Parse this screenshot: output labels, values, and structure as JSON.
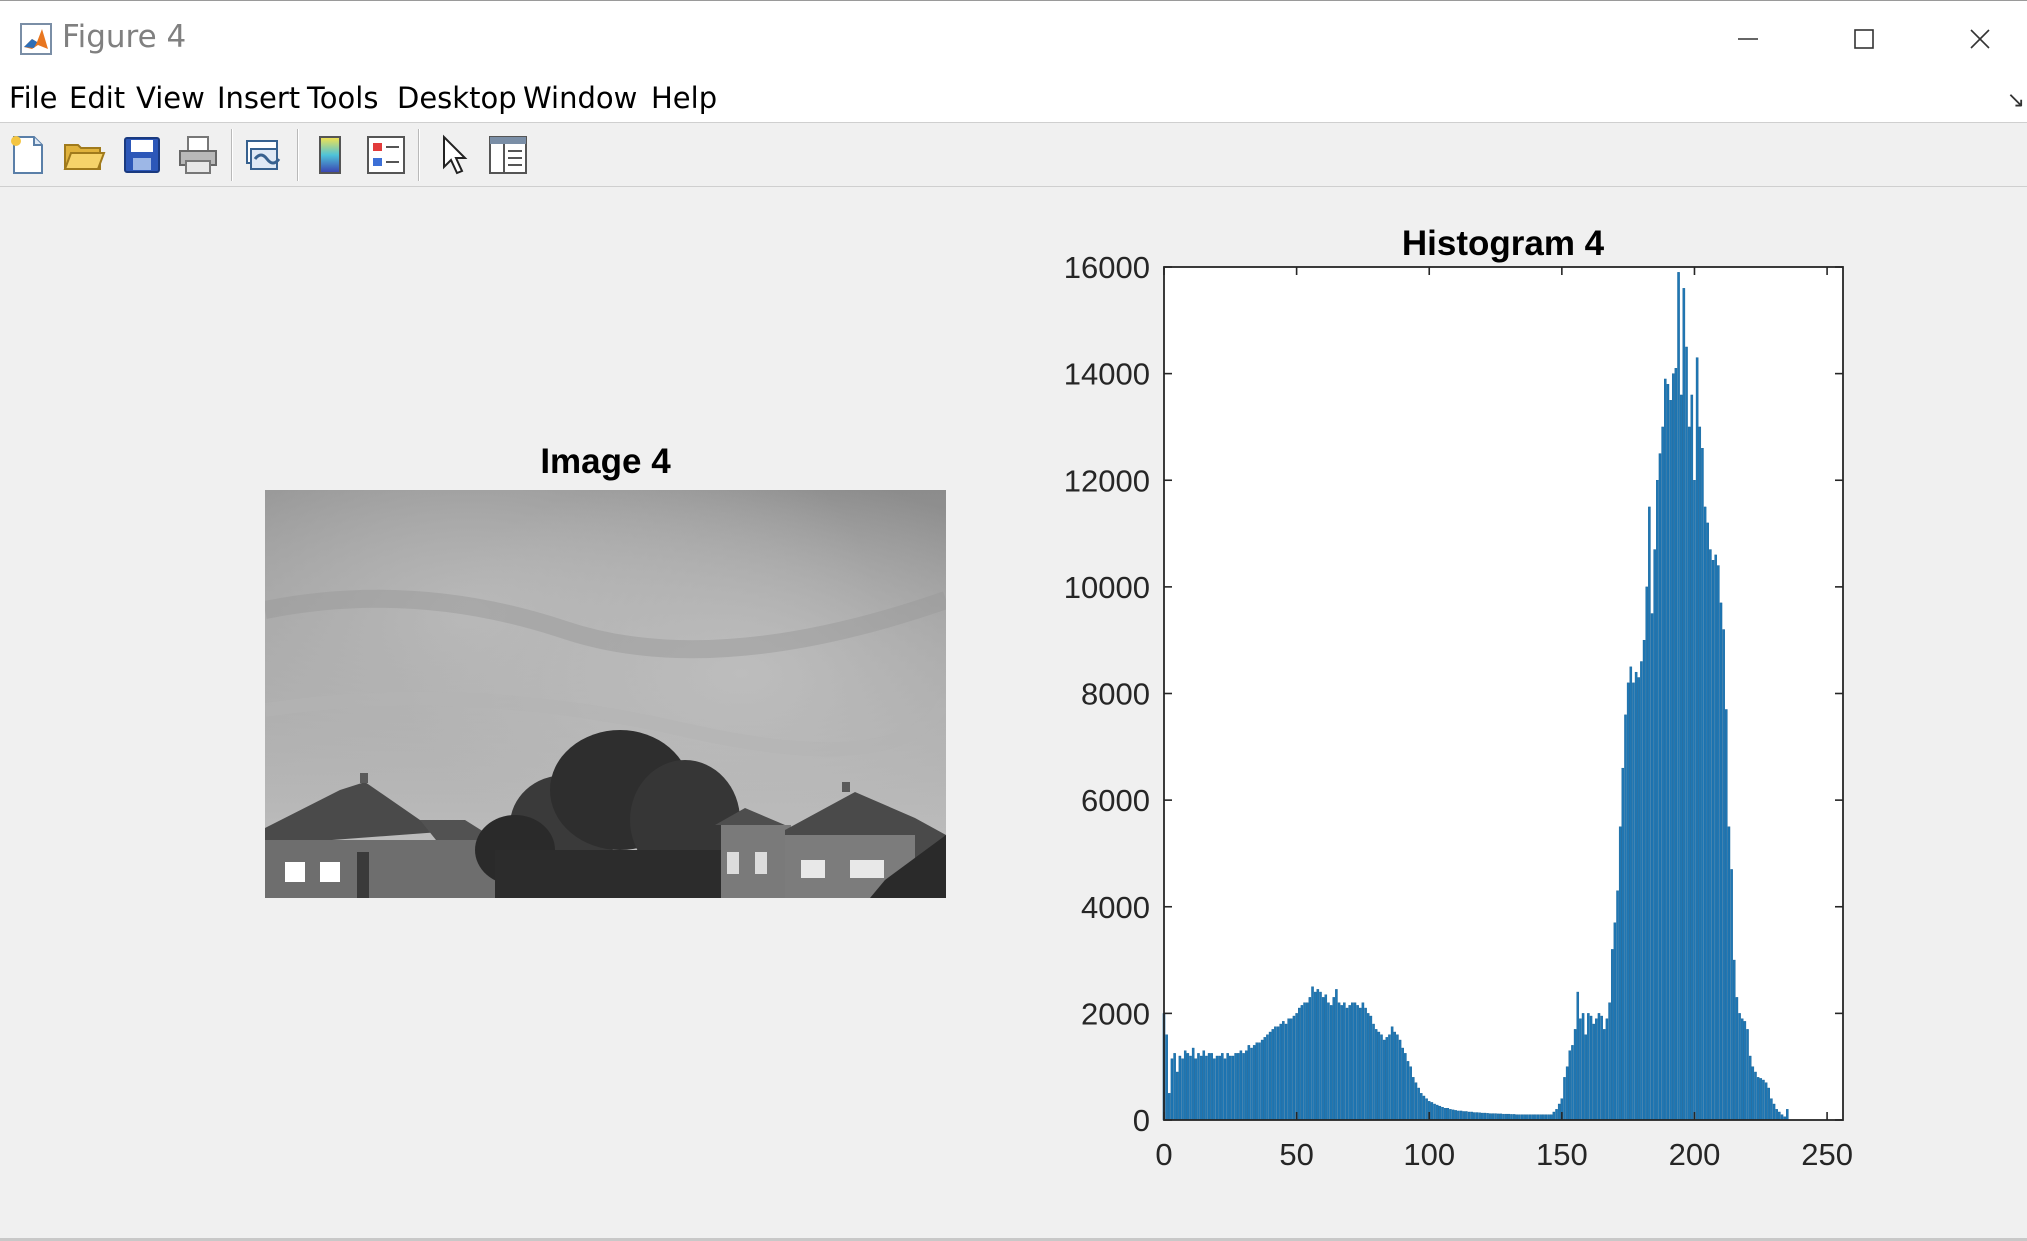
{
  "window": {
    "title": "Figure 4",
    "minimize_icon": "minimize-icon",
    "maximize_icon": "maximize-icon",
    "close_icon": "close-icon"
  },
  "menu": {
    "items": [
      "File",
      "Edit",
      "View",
      "Insert",
      "Tools",
      "Desktop",
      "Window",
      "Help"
    ],
    "overflow_icon": "dock-arrow-icon"
  },
  "toolbar": {
    "icons": [
      "new-figure-icon",
      "open-file-icon",
      "save-icon",
      "print-icon",
      "link-plot-icon",
      "colorbar-icon",
      "legend-icon",
      "edit-plot-pointer-icon",
      "property-inspector-icon"
    ]
  },
  "colors": {
    "bar": "#1f77b4",
    "bar_edge": "#0e5d94",
    "axes_bg": "#ffffff",
    "figure_bg": "#f0f0f0"
  },
  "image_panel": {
    "title": "Image 4"
  },
  "chart_data": {
    "type": "bar",
    "title": "Histogram 4",
    "xlabel": "",
    "ylabel": "",
    "xlim": [
      0,
      256
    ],
    "ylim": [
      0,
      16000
    ],
    "xticks": [
      0,
      50,
      100,
      150,
      200,
      250
    ],
    "yticks": [
      0,
      2000,
      4000,
      6000,
      8000,
      10000,
      12000,
      14000,
      16000
    ],
    "grid": false,
    "x_start": 0,
    "values": [
      2000,
      1600,
      500,
      1150,
      1250,
      900,
      1200,
      1150,
      1300,
      1250,
      1200,
      1350,
      1150,
      1250,
      1200,
      1300,
      1200,
      1250,
      1250,
      1150,
      1200,
      1200,
      1250,
      1150,
      1250,
      1200,
      1200,
      1250,
      1250,
      1300,
      1250,
      1300,
      1400,
      1350,
      1400,
      1450,
      1450,
      1500,
      1550,
      1600,
      1650,
      1700,
      1750,
      1750,
      1800,
      1850,
      1800,
      1900,
      1900,
      1950,
      2000,
      2100,
      2150,
      2200,
      2200,
      2300,
      2500,
      2400,
      2450,
      2400,
      2300,
      2350,
      2200,
      2150,
      2300,
      2450,
      2200,
      2150,
      2200,
      2100,
      2150,
      2200,
      2200,
      2150,
      2100,
      2200,
      2100,
      2000,
      1950,
      1800,
      1700,
      1650,
      1600,
      1500,
      1550,
      1600,
      1750,
      1650,
      1600,
      1500,
      1350,
      1250,
      1100,
      1000,
      800,
      700,
      600,
      500,
      450,
      400,
      350,
      330,
      300,
      280,
      260,
      240,
      220,
      220,
      200,
      190,
      180,
      170,
      170,
      160,
      160,
      150,
      150,
      140,
      140,
      135,
      130,
      130,
      125,
      120,
      120,
      120,
      115,
      115,
      110,
      110,
      110,
      105,
      105,
      100,
      100,
      100,
      100,
      100,
      100,
      100,
      100,
      100,
      100,
      100,
      100,
      100,
      100,
      150,
      200,
      300,
      400,
      800,
      1000,
      1300,
      1400,
      1700,
      2400,
      1900,
      2000,
      1600,
      2000,
      1950,
      1800,
      1900,
      2000,
      1950,
      1700,
      1900,
      2200,
      3200,
      3700,
      4300,
      5500,
      6600,
      7600,
      8200,
      8500,
      8200,
      8400,
      8300,
      8600,
      9000,
      10000,
      11500,
      9500,
      10700,
      12000,
      12500,
      13000,
      13900,
      13800,
      13500,
      14000,
      14100,
      15900,
      13600,
      15600,
      14500,
      13000,
      13600,
      12000,
      14300,
      13000,
      12600,
      11500,
      11200,
      10700,
      10500,
      10600,
      10400,
      9700,
      9200,
      7700,
      5500,
      4700,
      3000,
      2300,
      2000,
      1900,
      1850,
      1700,
      1200,
      1000,
      900,
      800,
      780,
      750,
      700,
      600,
      400,
      300,
      200,
      150,
      100,
      60,
      200
    ]
  }
}
